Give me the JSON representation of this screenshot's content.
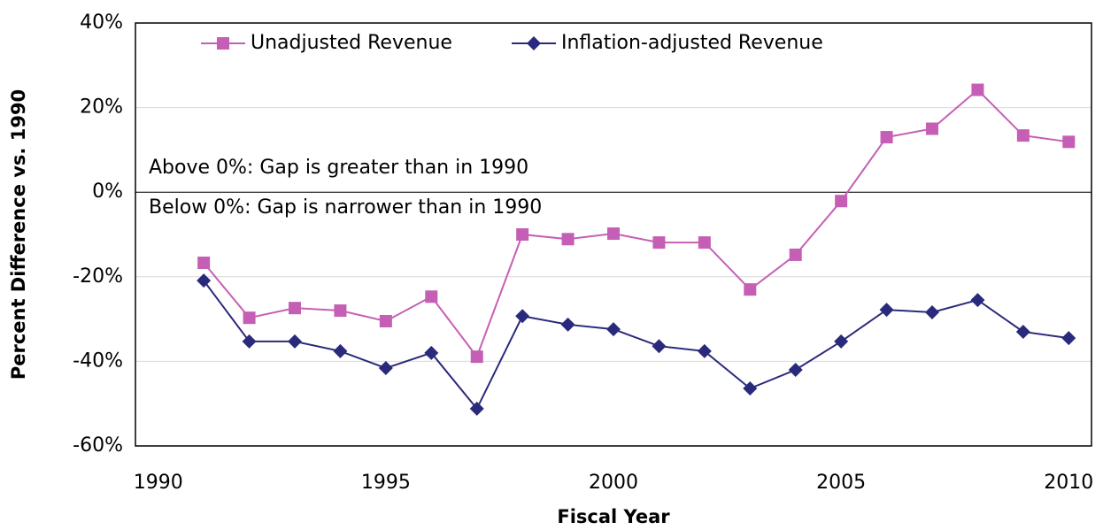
{
  "chart_data": {
    "type": "line",
    "x_label": "Fiscal Year",
    "y_label": "Percent Difference vs. 1990",
    "annotations": [
      "Above 0%: Gap is greater than in 1990",
      "Below 0%: Gap is narrower than in 1990"
    ],
    "x": [
      1991,
      1992,
      1993,
      1994,
      1995,
      1996,
      1997,
      1998,
      1999,
      2000,
      2001,
      2002,
      2003,
      2004,
      2005,
      2006,
      2007,
      2008,
      2009,
      2010
    ],
    "series": [
      {
        "name": "Unadjusted Revenue",
        "color": "#c55fb5",
        "marker": "square",
        "values": [
          -16.7,
          -29.7,
          -27.4,
          -28.0,
          -30.5,
          -24.7,
          -38.9,
          -10.0,
          -11.1,
          -9.8,
          -11.9,
          -11.9,
          -23.0,
          -14.8,
          -2.1,
          13.0,
          15.0,
          24.2,
          13.4,
          11.9
        ]
      },
      {
        "name": "Inflation-adjusted Revenue",
        "color": "#2a2a7c",
        "marker": "diamond",
        "values": [
          -20.9,
          -35.3,
          -35.3,
          -37.6,
          -41.6,
          -38.0,
          -51.2,
          -29.3,
          -31.3,
          -32.4,
          -36.4,
          -37.6,
          -46.4,
          -42.0,
          -35.3,
          -27.8,
          -28.4,
          -25.5,
          -33.0,
          -34.5
        ]
      }
    ],
    "xlim": [
      1989.5,
      2010.5
    ],
    "xticks": [
      1990,
      1995,
      2000,
      2005,
      2010
    ],
    "ylim": [
      -60,
      40
    ],
    "yticks": [
      {
        "value": -60,
        "label": "-60%"
      },
      {
        "value": -40,
        "label": "-40%"
      },
      {
        "value": -20,
        "label": "-20%"
      },
      {
        "value": 0,
        "label": "0%"
      },
      {
        "value": 20,
        "label": "20%"
      },
      {
        "value": 40,
        "label": "40%"
      }
    ],
    "grid": true,
    "legend": "top"
  }
}
